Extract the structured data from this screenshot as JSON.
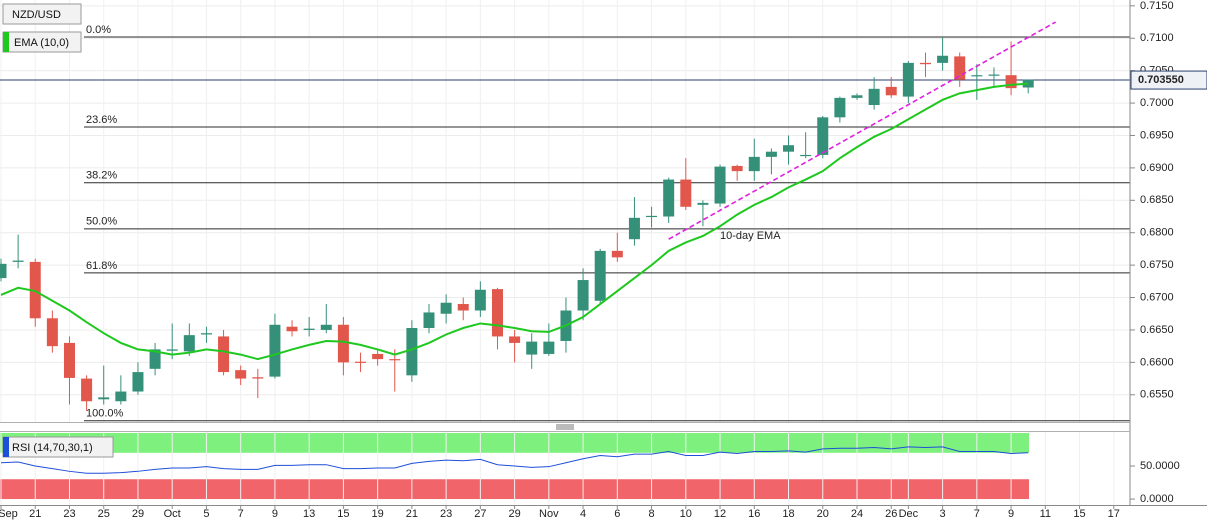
{
  "chart_data": {
    "type": "candlestick",
    "title": "NZD/USD",
    "categories": [
      "Sep",
      null,
      "21",
      null,
      "23",
      null,
      "25",
      null,
      "29",
      null,
      "Oct",
      null,
      "5",
      null,
      "7",
      null,
      "9",
      null,
      "13",
      null,
      "15",
      null,
      "19",
      null,
      "21",
      null,
      "23",
      null,
      "27",
      null,
      "29",
      null,
      "Nov",
      null,
      "4",
      null,
      "6",
      null,
      "8",
      null,
      "10",
      null,
      "12",
      null,
      "16",
      null,
      "18",
      null,
      "20",
      null,
      "24",
      null,
      "26",
      "Dec",
      null,
      "3",
      null,
      "7",
      null,
      "9",
      null,
      "11",
      null,
      "15",
      null,
      "17"
    ],
    "open": [
      0.673,
      0.6755,
      0.6755,
      0.6668,
      0.663,
      0.6575,
      0.6543,
      0.654,
      0.6555,
      0.659,
      0.6618,
      0.6617,
      0.6643,
      0.664,
      0.6588,
      0.6577,
      0.6578,
      0.6655,
      0.665,
      0.665,
      0.6658,
      0.6601,
      0.6613,
      0.6605,
      0.658,
      0.6653,
      0.6675,
      0.669,
      0.668,
      0.6713,
      0.664,
      0.6612,
      0.6613,
      0.6633,
      0.668,
      0.6695,
      0.6772,
      0.679,
      0.6825,
      0.6825,
      0.6882,
      0.6843,
      0.6845,
      0.6903,
      0.6895,
      0.6917,
      0.6925,
      0.692,
      0.692,
      0.6978,
      0.7008,
      0.6997,
      0.7025,
      0.701,
      0.7062,
      0.7062,
      0.7072,
      0.7043,
      0.7043,
      0.7043,
      0.7024,
      null,
      null,
      null,
      null,
      null
    ],
    "high": [
      0.676,
      0.6797,
      0.676,
      0.668,
      0.664,
      0.658,
      0.6595,
      0.658,
      0.66,
      0.663,
      0.666,
      0.666,
      0.6655,
      0.665,
      0.6595,
      0.659,
      0.6675,
      0.6665,
      0.667,
      0.669,
      0.667,
      0.6615,
      0.662,
      0.662,
      0.6665,
      0.669,
      0.6705,
      0.67,
      0.6725,
      0.6715,
      0.665,
      0.6645,
      0.666,
      0.67,
      0.6745,
      0.6775,
      0.68,
      0.6855,
      0.684,
      0.6885,
      0.6915,
      0.685,
      0.6905,
      0.6905,
      0.6945,
      0.693,
      0.695,
      0.6955,
      0.698,
      0.701,
      0.7015,
      0.704,
      0.704,
      0.7065,
      0.7078,
      0.7102,
      0.7078,
      0.706,
      0.7055,
      0.7095,
      0.7036,
      null,
      null,
      null,
      null,
      null
    ],
    "low": [
      0.6725,
      0.6745,
      0.6655,
      0.6615,
      0.6535,
      0.6525,
      0.6535,
      0.6535,
      0.655,
      0.658,
      0.6605,
      0.661,
      0.663,
      0.658,
      0.6565,
      0.6545,
      0.6575,
      0.664,
      0.664,
      0.6645,
      0.658,
      0.6585,
      0.6595,
      0.6555,
      0.657,
      0.6645,
      0.666,
      0.6665,
      0.667,
      0.662,
      0.66,
      0.659,
      0.661,
      0.6615,
      0.6665,
      0.669,
      0.6755,
      0.678,
      0.6808,
      0.6815,
      0.6835,
      0.681,
      0.684,
      0.688,
      0.688,
      0.689,
      0.6905,
      0.6915,
      0.6915,
      0.697,
      0.7005,
      0.699,
      0.7008,
      0.7,
      0.704,
      0.705,
      0.7025,
      0.7005,
      0.7025,
      0.7012,
      0.7015,
      null,
      null,
      null,
      null,
      null
    ],
    "close": [
      0.6752,
      0.6757,
      0.6668,
      0.6625,
      0.6576,
      0.654,
      0.6546,
      0.6555,
      0.6585,
      0.662,
      0.662,
      0.6642,
      0.6645,
      0.6585,
      0.6575,
      0.6575,
      0.6658,
      0.6648,
      0.6652,
      0.6658,
      0.66,
      0.66,
      0.6605,
      0.6604,
      0.6653,
      0.6677,
      0.6692,
      0.668,
      0.6712,
      0.664,
      0.663,
      0.6632,
      0.6632,
      0.668,
      0.6727,
      0.6772,
      0.6762,
      0.6823,
      0.6826,
      0.6882,
      0.684,
      0.6846,
      0.6902,
      0.6895,
      0.6917,
      0.6925,
      0.6935,
      0.692,
      0.6978,
      0.7008,
      0.7012,
      0.7022,
      0.7012,
      0.7062,
      0.706,
      0.7073,
      0.7036,
      0.7043,
      0.7044,
      0.7023,
      0.7036,
      null,
      null,
      null,
      null,
      null
    ],
    "colors": {
      "up": "#35907a",
      "down": "#e2574c"
    },
    "ylim": [
      0.6508,
      0.7159
    ],
    "yticks": [
      {
        "value": 0.715,
        "label": "0.7150"
      },
      {
        "value": 0.71,
        "label": "0.7100"
      },
      {
        "value": 0.705,
        "label": "0.7050"
      },
      {
        "value": 0.7,
        "label": "0.7000"
      },
      {
        "value": 0.695,
        "label": "0.6950"
      },
      {
        "value": 0.69,
        "label": "0.6900"
      },
      {
        "value": 0.685,
        "label": "0.6850"
      },
      {
        "value": 0.68,
        "label": "0.6800"
      },
      {
        "value": 0.675,
        "label": "0.6750"
      },
      {
        "value": 0.67,
        "label": "0.6700"
      },
      {
        "value": 0.665,
        "label": "0.6650"
      },
      {
        "value": 0.66,
        "label": "0.6600"
      },
      {
        "value": 0.655,
        "label": "0.6550"
      }
    ],
    "grid": true,
    "overlays": [
      {
        "name": "EMA (10,0)",
        "color": "#1ec81e",
        "values": [
          0.6704,
          0.6715,
          0.671,
          0.6695,
          0.668,
          0.6662,
          0.6645,
          0.663,
          0.662,
          0.6617,
          0.6612,
          0.6615,
          0.662,
          0.6617,
          0.6612,
          0.6605,
          0.6612,
          0.662,
          0.6627,
          0.6633,
          0.6632,
          0.6627,
          0.662,
          0.6612,
          0.662,
          0.663,
          0.6643,
          0.6653,
          0.666,
          0.6657,
          0.6653,
          0.6648,
          0.6647,
          0.6657,
          0.667,
          0.669,
          0.671,
          0.673,
          0.675,
          0.6772,
          0.6785,
          0.6795,
          0.681,
          0.6828,
          0.6843,
          0.6855,
          0.687,
          0.6882,
          0.6895,
          0.6915,
          0.6932,
          0.6948,
          0.696,
          0.6975,
          0.699,
          0.7005,
          0.7015,
          0.702,
          0.7025,
          0.7028,
          0.703,
          null,
          null,
          null,
          null,
          null
        ]
      }
    ],
    "last_price": {
      "value": 0.70355,
      "label": "0.703550",
      "color": "#2a3f6e"
    },
    "fib_levels": [
      {
        "label": "0.0%",
        "value": 0.7102
      },
      {
        "label": "23.6%",
        "value": 0.6963
      },
      {
        "label": "38.2%",
        "value": 0.6877
      },
      {
        "label": "50.0%",
        "value": 0.6806
      },
      {
        "label": "61.8%",
        "value": 0.6738
      },
      {
        "label": "100.0%",
        "value": 0.651
      }
    ],
    "trendline": {
      "color": "#e020e0",
      "x": [
        39,
        61.6
      ],
      "values": [
        0.679,
        0.7125
      ]
    },
    "annotations": [
      {
        "text": "10-day EMA"
      }
    ],
    "rsi": {
      "name": "RSI (14,70,30,1)",
      "color": "#1e4fd8",
      "values": [
        55,
        56,
        50,
        46,
        42,
        39,
        39,
        40,
        42,
        45,
        47,
        47,
        49,
        46,
        45,
        45,
        51,
        51,
        52,
        52,
        46,
        46,
        47,
        47,
        54,
        57,
        59,
        58,
        60,
        52,
        50,
        48,
        49,
        55,
        61,
        66,
        64,
        68,
        68,
        72,
        66,
        66,
        71,
        69,
        72,
        72,
        73,
        71,
        76,
        77,
        77,
        78,
        76,
        79,
        78,
        79,
        72,
        72,
        72,
        69,
        70,
        null,
        null,
        null,
        null,
        null
      ],
      "ylim": [
        -9,
        101.5
      ],
      "yticks": [
        {
          "value": 50,
          "label": "50.0000"
        },
        {
          "value": 0,
          "label": "0.0000"
        }
      ],
      "bands": [
        {
          "from": 70,
          "to": 100,
          "color": "#7ef07e"
        },
        {
          "from": 0,
          "to": 30,
          "color": "#f0646a"
        }
      ]
    }
  }
}
